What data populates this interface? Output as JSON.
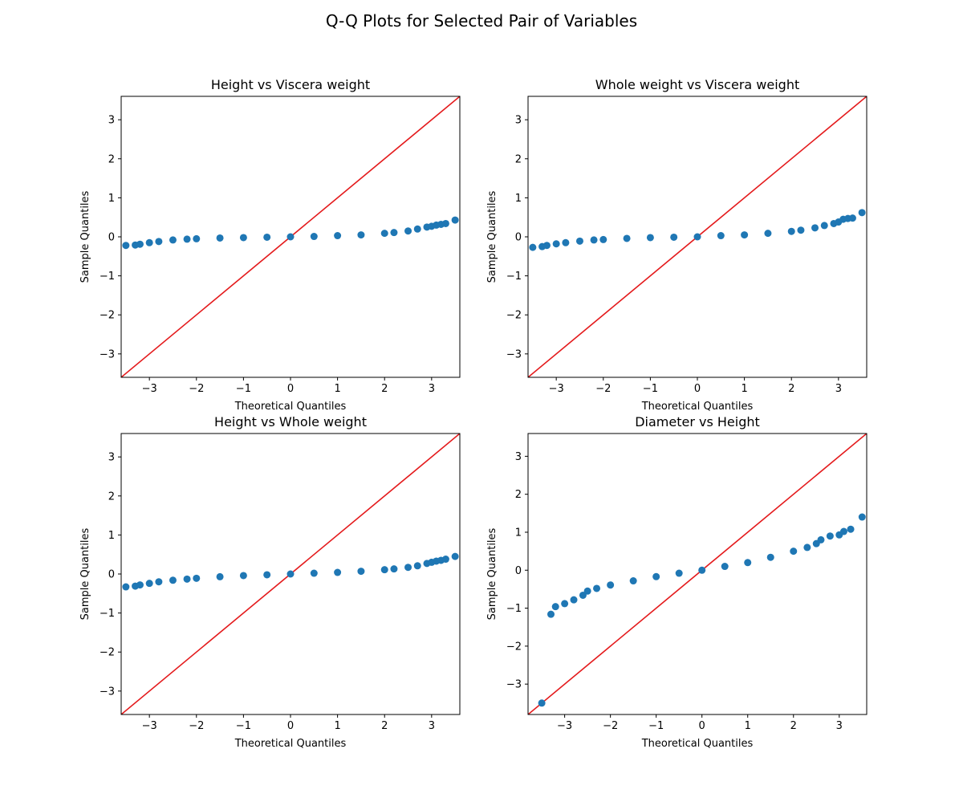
{
  "figure": {
    "title": "Q-Q Plots for Selected Pair of Variables"
  },
  "chart_data": [
    {
      "type": "scatter",
      "title": "Height vs Viscera weight",
      "xlabel": "Theoretical Quantiles",
      "ylabel": "Sample Quantiles",
      "xlim": [
        -3.6,
        3.6
      ],
      "ylim": [
        -3.6,
        3.6
      ],
      "xticks": [
        -3,
        -2,
        -1,
        0,
        1,
        2,
        3
      ],
      "yticks": [
        -3,
        -2,
        -1,
        0,
        1,
        2,
        3
      ],
      "reference_line": "45-degree",
      "grid": false,
      "points": {
        "x": [
          -3.5,
          -3.3,
          -3.2,
          -3.0,
          -2.8,
          -2.5,
          -2.2,
          -2.0,
          -1.5,
          -1.0,
          -0.5,
          0.0,
          0.5,
          1.0,
          1.5,
          2.0,
          2.2,
          2.5,
          2.7,
          2.9,
          3.0,
          3.1,
          3.2,
          3.3,
          3.5
        ],
        "y": [
          -0.22,
          -0.21,
          -0.19,
          -0.15,
          -0.12,
          -0.08,
          -0.06,
          -0.05,
          -0.03,
          -0.02,
          -0.01,
          0.0,
          0.01,
          0.03,
          0.05,
          0.09,
          0.11,
          0.15,
          0.2,
          0.25,
          0.27,
          0.3,
          0.32,
          0.34,
          0.43
        ]
      }
    },
    {
      "type": "scatter",
      "title": "Whole weight vs Viscera weight",
      "xlabel": "Theoretical Quantiles",
      "ylabel": "Sample Quantiles",
      "xlim": [
        -3.6,
        3.6
      ],
      "ylim": [
        -3.6,
        3.6
      ],
      "xticks": [
        -3,
        -2,
        -1,
        0,
        1,
        2,
        3
      ],
      "yticks": [
        -3,
        -2,
        -1,
        0,
        1,
        2,
        3
      ],
      "reference_line": "45-degree",
      "grid": false,
      "points": {
        "x": [
          -3.5,
          -3.3,
          -3.2,
          -3.0,
          -2.8,
          -2.5,
          -2.2,
          -2.0,
          -1.5,
          -1.0,
          -0.5,
          0.0,
          0.5,
          1.0,
          1.5,
          2.0,
          2.2,
          2.5,
          2.7,
          2.9,
          3.0,
          3.1,
          3.2,
          3.3,
          3.5
        ],
        "y": [
          -0.27,
          -0.25,
          -0.22,
          -0.18,
          -0.15,
          -0.11,
          -0.08,
          -0.07,
          -0.04,
          -0.02,
          -0.01,
          0.0,
          0.03,
          0.05,
          0.09,
          0.14,
          0.17,
          0.23,
          0.29,
          0.34,
          0.38,
          0.45,
          0.47,
          0.48,
          0.62
        ]
      }
    },
    {
      "type": "scatter",
      "title": "Height vs Whole weight",
      "xlabel": "Theoretical Quantiles",
      "ylabel": "Sample Quantiles",
      "xlim": [
        -3.6,
        3.6
      ],
      "ylim": [
        -3.6,
        3.6
      ],
      "xticks": [
        -3,
        -2,
        -1,
        0,
        1,
        2,
        3
      ],
      "yticks": [
        -3,
        -2,
        -1,
        0,
        1,
        2,
        3
      ],
      "reference_line": "45-degree",
      "grid": false,
      "points": {
        "x": [
          -3.5,
          -3.3,
          -3.2,
          -3.0,
          -2.8,
          -2.5,
          -2.2,
          -2.0,
          -1.5,
          -1.0,
          -0.5,
          0.0,
          0.5,
          1.0,
          1.5,
          2.0,
          2.2,
          2.5,
          2.7,
          2.9,
          3.0,
          3.1,
          3.2,
          3.3,
          3.5
        ],
        "y": [
          -0.33,
          -0.31,
          -0.28,
          -0.24,
          -0.2,
          -0.16,
          -0.13,
          -0.11,
          -0.07,
          -0.04,
          -0.02,
          0.0,
          0.02,
          0.04,
          0.07,
          0.11,
          0.13,
          0.17,
          0.21,
          0.27,
          0.3,
          0.33,
          0.35,
          0.38,
          0.45
        ]
      }
    },
    {
      "type": "scatter",
      "title": "Diameter vs Height",
      "xlabel": "Theoretical Quantiles",
      "ylabel": "Sample Quantiles",
      "xlim": [
        -3.8,
        3.6
      ],
      "ylim": [
        -3.8,
        3.6
      ],
      "xticks": [
        -3,
        -2,
        -1,
        0,
        1,
        2,
        3
      ],
      "yticks": [
        -3,
        -2,
        -1,
        0,
        1,
        2,
        3
      ],
      "reference_line": "45-degree",
      "grid": false,
      "points": {
        "x": [
          -3.5,
          -3.3,
          -3.2,
          -3.0,
          -2.8,
          -2.6,
          -2.5,
          -2.3,
          -2.0,
          -1.5,
          -1.0,
          -0.5,
          0.0,
          0.5,
          1.0,
          1.5,
          2.0,
          2.3,
          2.5,
          2.6,
          2.8,
          3.0,
          3.1,
          3.25,
          3.5
        ],
        "y": [
          -3.5,
          -1.16,
          -0.96,
          -0.88,
          -0.78,
          -0.66,
          -0.55,
          -0.48,
          -0.39,
          -0.28,
          -0.17,
          -0.08,
          0.0,
          0.1,
          0.2,
          0.34,
          0.5,
          0.6,
          0.7,
          0.8,
          0.9,
          0.93,
          1.02,
          1.08,
          1.4
        ]
      }
    }
  ]
}
